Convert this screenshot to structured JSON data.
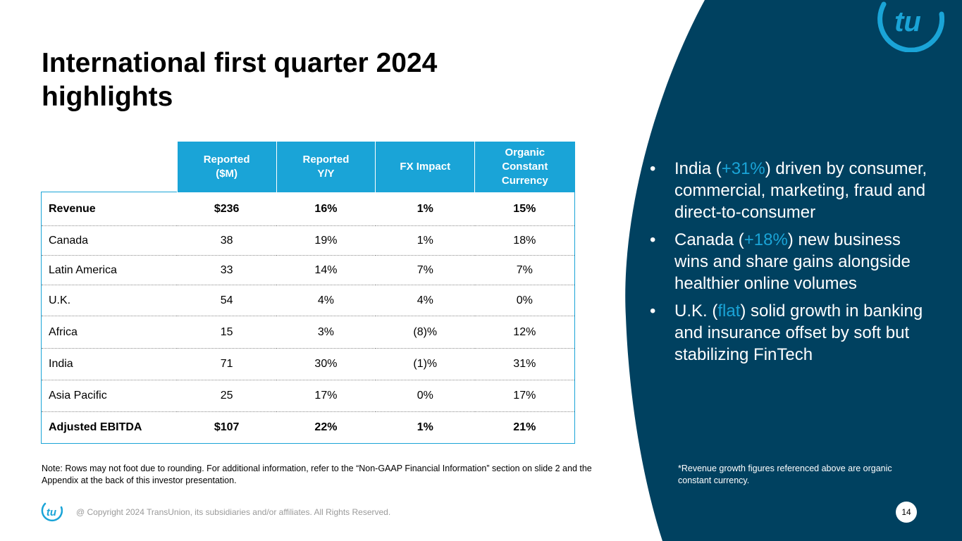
{
  "slide": {
    "title": "International first quarter 2024 highlights",
    "page_number": "14",
    "copyright": "@ Copyright 2024 TransUnion, its subsidiaries and/or affiliates.  All Rights Reserved.",
    "logo_text": "tu"
  },
  "colors": {
    "navy": "#004160",
    "accent": "#1aa4d7"
  },
  "table": {
    "headers": [
      "",
      "Reported\n($M)",
      "Reported\nY/Y",
      "FX Impact",
      "Organic\nConstant\nCurrency"
    ],
    "rows": [
      {
        "cells": [
          "Revenue",
          "$236",
          "16%",
          "1%",
          "15%"
        ],
        "bold": true
      },
      {
        "cells": [
          "Canada",
          "38",
          "19%",
          "1%",
          "18%"
        ],
        "bold": false
      },
      {
        "cells": [
          "Latin America",
          "33",
          "14%",
          "7%",
          "7%"
        ],
        "bold": false
      },
      {
        "cells": [
          "U.K.",
          "54",
          "4%",
          "4%",
          "0%"
        ],
        "bold": false
      },
      {
        "cells": [
          "Africa",
          "15",
          "3%",
          "(8)%",
          "12%"
        ],
        "bold": false
      },
      {
        "cells": [
          "India",
          "71",
          "30%",
          "(1)%",
          "31%"
        ],
        "bold": false
      },
      {
        "cells": [
          "Asia Pacific",
          "25",
          "17%",
          "0%",
          "17%"
        ],
        "bold": false
      },
      {
        "cells": [
          "Adjusted EBITDA",
          "$107",
          "22%",
          "1%",
          "21%"
        ],
        "bold": true
      }
    ]
  },
  "note": "Note: Rows may not foot due to rounding. For additional information, refer to the “Non-GAAP Financial Information” section on slide 2 and the Appendix at the back of this investor presentation.",
  "bullets": [
    {
      "marker": "•",
      "before": "India (",
      "highlight": "+31%",
      "after": ") driven by consumer, commercial, marketing, fraud and direct-to-consumer"
    },
    {
      "marker": "•",
      "before": "Canada (",
      "highlight": "+18%",
      "after": ") new business wins and share gains alongside healthier online volumes"
    },
    {
      "marker": "•",
      "before": "U.K. (",
      "highlight": "flat",
      "after": ") solid growth in banking and insurance offset by soft but stabilizing FinTech"
    }
  ],
  "footnote": "*Revenue growth figures referenced above are organic constant currency."
}
